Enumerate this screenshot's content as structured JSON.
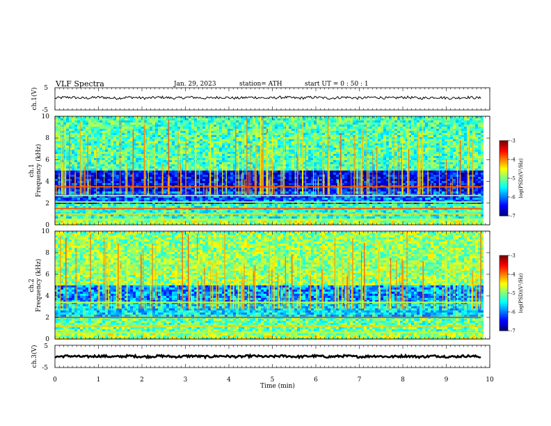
{
  "header": {
    "title": "VLF  Spectra",
    "date": "Jan. 29, 2023",
    "station": "station= ATH",
    "start_ut": "start  UT  =    0  : 50 : 1"
  },
  "chart_data": [
    {
      "type": "line",
      "panel": "ch1-waveform",
      "ylabel": "ch.1(V)",
      "ylim": [
        -5,
        5
      ],
      "yticks": [
        "5",
        "-5"
      ],
      "xlim": [
        0,
        10
      ],
      "series": [
        {
          "name": "",
          "approx_level": 0.5,
          "noise_amplitude": 0.6,
          "color": "#000000"
        }
      ]
    },
    {
      "type": "heatmap",
      "panel": "ch1-spectrogram",
      "ylabel_channel": "ch.1",
      "ylabel": "Frequency  (kHz)",
      "ylim": [
        0,
        10
      ],
      "yticks": [
        "0",
        "2",
        "4",
        "6",
        "8",
        "10"
      ],
      "xlim": [
        0,
        9.8
      ],
      "colorbar": {
        "label": "log(PSD)(V²/Hz)",
        "min": -7,
        "max": -3,
        "ticks": [
          "-3",
          "-4",
          "-5",
          "-6",
          "-7"
        ]
      },
      "bands": [
        {
          "from_khz": 5.0,
          "to_khz": 10.0,
          "level": -5.2
        },
        {
          "from_khz": 3.0,
          "to_khz": 5.0,
          "level": -6.5
        },
        {
          "from_khz": 2.0,
          "to_khz": 3.0,
          "level": -6.1
        },
        {
          "from_khz": 0.5,
          "to_khz": 2.0,
          "level": -5.3
        },
        {
          "from_khz": 0.0,
          "to_khz": 0.5,
          "level": -4.8
        }
      ],
      "lines_khz": [
        0.5,
        1.0,
        1.5,
        2.1,
        2.7,
        3.5
      ]
    },
    {
      "type": "heatmap",
      "panel": "ch2-spectrogram",
      "ylabel_channel": "ch.2",
      "ylabel": "Frequency  (kHz)",
      "ylim": [
        0,
        10
      ],
      "yticks": [
        "0",
        "2",
        "4",
        "6",
        "8",
        "10"
      ],
      "xlim": [
        0,
        9.8
      ],
      "colorbar": {
        "label": "log(PSD)(V²/Hz)",
        "min": -7,
        "max": -3,
        "ticks": [
          "-3",
          "-4",
          "-5",
          "-6",
          "-7"
        ]
      },
      "bands": [
        {
          "from_khz": 5.0,
          "to_khz": 10.0,
          "level": -4.9
        },
        {
          "from_khz": 3.5,
          "to_khz": 5.0,
          "level": -5.9
        },
        {
          "from_khz": 2.0,
          "to_khz": 3.5,
          "level": -5.6
        },
        {
          "from_khz": 0.5,
          "to_khz": 2.0,
          "level": -5.1
        },
        {
          "from_khz": 0.0,
          "to_khz": 0.5,
          "level": -4.8
        }
      ],
      "lines_khz": [
        0.6,
        1.2,
        2.0,
        3.4
      ]
    },
    {
      "type": "line",
      "panel": "ch3-waveform",
      "ylabel": "ch.3(V)",
      "ylim": [
        -5,
        5
      ],
      "yticks": [
        "5",
        "-5"
      ],
      "xlim": [
        0,
        10
      ],
      "xlabel": "Time  (min)",
      "xticks": [
        "0",
        "1",
        "2",
        "3",
        "4",
        "5",
        "6",
        "7",
        "8",
        "9",
        "10"
      ],
      "series": [
        {
          "name": "",
          "approx_level": 0,
          "noise_amplitude": 0.5,
          "color": "#000000"
        }
      ]
    }
  ]
}
